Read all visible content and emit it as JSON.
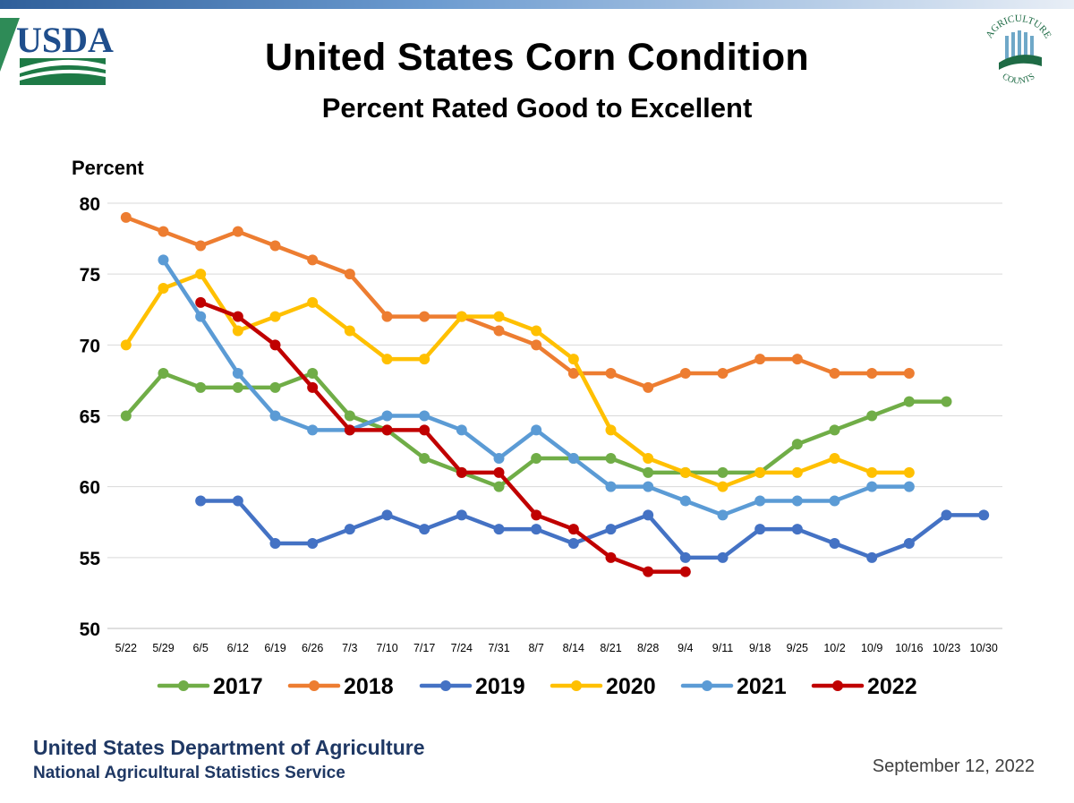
{
  "header": {
    "title": "United States Corn Condition",
    "subtitle": "Percent Rated Good to Excellent"
  },
  "logos": {
    "usda_text": "USDA",
    "ag_text_top": "AGRICULTURE",
    "ag_text_bottom": "COUNTS"
  },
  "footer": {
    "organization": "United States Department of Agriculture",
    "agency": "National Agricultural Statistics Service",
    "date": "September 12, 2022"
  },
  "chart_data": {
    "type": "line",
    "title": "United States Corn Condition",
    "subtitle": "Percent Rated Good to Excellent",
    "ylabel": "Percent",
    "xlabel": "",
    "ylim": [
      50,
      80
    ],
    "yticks": [
      50,
      55,
      60,
      65,
      70,
      75,
      80
    ],
    "grid": true,
    "legend_position": "bottom",
    "categories": [
      "5/22",
      "5/29",
      "6/5",
      "6/12",
      "6/19",
      "6/26",
      "7/3",
      "7/10",
      "7/17",
      "7/24",
      "7/31",
      "8/7",
      "8/14",
      "8/21",
      "8/28",
      "9/4",
      "9/11",
      "9/18",
      "9/25",
      "10/2",
      "10/9",
      "10/16",
      "10/23",
      "10/30"
    ],
    "series": [
      {
        "name": "2017",
        "color": "#70ad47",
        "values": [
          65,
          68,
          67,
          67,
          67,
          68,
          65,
          64,
          62,
          61,
          60,
          62,
          62,
          62,
          61,
          61,
          61,
          61,
          63,
          64,
          65,
          66,
          66,
          null
        ]
      },
      {
        "name": "2018",
        "color": "#ed7d31",
        "values": [
          79,
          78,
          77,
          78,
          77,
          76,
          75,
          72,
          72,
          72,
          71,
          70,
          68,
          68,
          67,
          68,
          68,
          69,
          69,
          68,
          68,
          68,
          null,
          null
        ]
      },
      {
        "name": "2019",
        "color": "#4472c4",
        "values": [
          null,
          null,
          59,
          59,
          56,
          56,
          57,
          58,
          57,
          58,
          57,
          57,
          56,
          57,
          58,
          55,
          55,
          57,
          57,
          56,
          55,
          56,
          58,
          58
        ]
      },
      {
        "name": "2020",
        "color": "#ffc000",
        "values": [
          70,
          74,
          75,
          71,
          72,
          73,
          71,
          69,
          69,
          72,
          72,
          71,
          69,
          64,
          62,
          61,
          60,
          61,
          61,
          62,
          61,
          61,
          null,
          null
        ]
      },
      {
        "name": "2021",
        "color": "#5b9bd5",
        "values": [
          null,
          76,
          72,
          68,
          65,
          64,
          64,
          65,
          65,
          64,
          62,
          64,
          62,
          60,
          60,
          59,
          58,
          59,
          59,
          59,
          60,
          60,
          null,
          null
        ]
      },
      {
        "name": "2022",
        "color": "#c00000",
        "values": [
          null,
          null,
          73,
          72,
          70,
          67,
          64,
          64,
          64,
          61,
          61,
          58,
          57,
          55,
          54,
          54,
          null,
          null,
          null,
          null,
          null,
          null,
          null,
          null
        ]
      }
    ]
  }
}
